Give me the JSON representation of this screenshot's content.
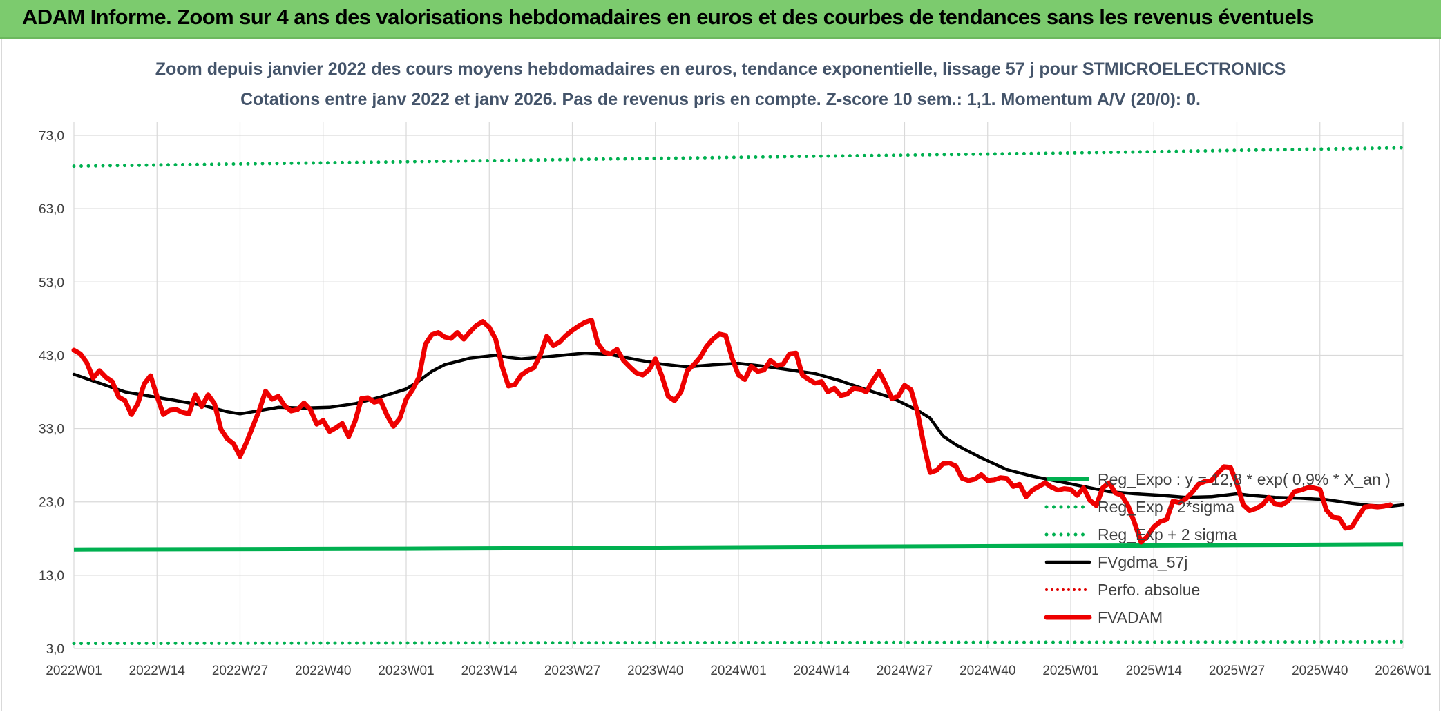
{
  "banner": {
    "title": "ADAM Informe. Zoom sur 4 ans des valorisations hebdomadaires en euros et des courbes de tendances sans les revenus éventuels"
  },
  "chart_data": {
    "type": "line",
    "title": "Zoom depuis janvier 2022 des cours moyens hebdomadaires en euros, tendance exponentielle, lissage 57 j pour STMICROELECTRONICS",
    "subtitle": "Cotations entre janv 2022 et janv 2026. Pas de revenus pris en compte. Z-score 10 sem.: 1,1. Momentum A/V (20/0): 0.",
    "xlabel": "",
    "ylabel": "",
    "ylim": [
      3,
      73
    ],
    "y_ticks": [
      "73,0",
      "63,0",
      "53,0",
      "43,0",
      "33,0",
      "23,0",
      "13,0",
      "3,0"
    ],
    "y_tick_values": [
      73,
      63,
      53,
      43,
      33,
      23,
      13,
      3
    ],
    "x_ticks": [
      "2022W01",
      "2022W14",
      "2022W27",
      "2022W40",
      "2023W01",
      "2023W14",
      "2023W27",
      "2023W40",
      "2024W01",
      "2024W14",
      "2024W27",
      "2024W40",
      "2025W01",
      "2025W14",
      "2025W27",
      "2025W40",
      "2026W01"
    ],
    "x_tick_weeks": [
      0,
      13,
      26,
      39,
      52,
      65,
      78,
      91,
      104,
      117,
      130,
      143,
      156,
      169,
      182,
      195,
      208
    ],
    "grid": true,
    "legend_position": "bottom-right",
    "colors": {
      "reg_expo": "#00b050",
      "reg_band": "#00b050",
      "fvgdma": "#000000",
      "perfo": "#e00000",
      "fvadam": "#ee0000",
      "grid": "#d9d9d9"
    },
    "series": [
      {
        "name": "Reg_Expo : y = 12,8 * exp( 0,9% * X_an )",
        "style": "solid",
        "points": [
          [
            0,
            16.5
          ],
          [
            52,
            16.6
          ],
          [
            104,
            16.8
          ],
          [
            156,
            17.0
          ],
          [
            208,
            17.2
          ]
        ]
      },
      {
        "name": "Reg_Exp - 2*sigma",
        "style": "dotted",
        "points": [
          [
            0,
            3.7
          ],
          [
            52,
            3.75
          ],
          [
            104,
            3.8
          ],
          [
            156,
            3.85
          ],
          [
            208,
            3.9
          ]
        ]
      },
      {
        "name": "Reg_Exp + 2 sigma",
        "style": "dotted",
        "points": [
          [
            0,
            68.8
          ],
          [
            52,
            69.4
          ],
          [
            104,
            70.0
          ],
          [
            156,
            70.6
          ],
          [
            208,
            71.3
          ]
        ]
      },
      {
        "name": "FVgdma_57j",
        "style": "solid",
        "points": [
          [
            0,
            40.4
          ],
          [
            4,
            39.2
          ],
          [
            8,
            38.0
          ],
          [
            12,
            37.4
          ],
          [
            16,
            36.8
          ],
          [
            20,
            36.2
          ],
          [
            24,
            35.3
          ],
          [
            26,
            35.0
          ],
          [
            28,
            35.3
          ],
          [
            32,
            35.9
          ],
          [
            36,
            35.8
          ],
          [
            40,
            35.9
          ],
          [
            44,
            36.4
          ],
          [
            48,
            37.3
          ],
          [
            52,
            38.4
          ],
          [
            54,
            39.5
          ],
          [
            56,
            40.8
          ],
          [
            58,
            41.7
          ],
          [
            62,
            42.6
          ],
          [
            66,
            43.0
          ],
          [
            68,
            42.7
          ],
          [
            70,
            42.5
          ],
          [
            74,
            42.8
          ],
          [
            80,
            43.3
          ],
          [
            84,
            43.1
          ],
          [
            88,
            42.4
          ],
          [
            92,
            41.8
          ],
          [
            96,
            41.4
          ],
          [
            100,
            41.7
          ],
          [
            104,
            41.9
          ],
          [
            108,
            41.5
          ],
          [
            112,
            41.0
          ],
          [
            116,
            40.5
          ],
          [
            120,
            39.5
          ],
          [
            124,
            38.3
          ],
          [
            128,
            37.2
          ],
          [
            132,
            35.5
          ],
          [
            134,
            34.4
          ],
          [
            136,
            32.0
          ],
          [
            138,
            30.8
          ],
          [
            142,
            29.0
          ],
          [
            146,
            27.4
          ],
          [
            150,
            26.5
          ],
          [
            154,
            25.8
          ],
          [
            158,
            25.1
          ],
          [
            162,
            24.4
          ],
          [
            166,
            24.1
          ],
          [
            170,
            23.9
          ],
          [
            174,
            23.6
          ],
          [
            178,
            23.7
          ],
          [
            182,
            24.1
          ],
          [
            184,
            23.9
          ],
          [
            188,
            23.6
          ],
          [
            192,
            23.5
          ],
          [
            196,
            23.3
          ],
          [
            200,
            22.8
          ],
          [
            203,
            22.5
          ],
          [
            206,
            22.4
          ],
          [
            208,
            22.6
          ]
        ]
      },
      {
        "name": "Perfo. absolue",
        "style": "dotted",
        "points": []
      },
      {
        "name": "FVADAM",
        "style": "solid-thick",
        "points": [
          [
            0,
            43.7
          ],
          [
            1,
            43.2
          ],
          [
            2,
            42.0
          ],
          [
            3,
            39.9
          ],
          [
            4,
            40.9
          ],
          [
            5,
            40.0
          ],
          [
            6,
            39.4
          ],
          [
            7,
            37.3
          ],
          [
            8,
            36.8
          ],
          [
            9,
            34.9
          ],
          [
            10,
            36.4
          ],
          [
            11,
            39.1
          ],
          [
            12,
            40.2
          ],
          [
            13,
            37.4
          ],
          [
            14,
            34.9
          ],
          [
            15,
            35.5
          ],
          [
            16,
            35.6
          ],
          [
            17,
            35.2
          ],
          [
            18,
            35.0
          ],
          [
            19,
            37.6
          ],
          [
            20,
            36.0
          ],
          [
            21,
            37.6
          ],
          [
            22,
            36.4
          ],
          [
            23,
            32.9
          ],
          [
            24,
            31.6
          ],
          [
            25,
            30.9
          ],
          [
            26,
            29.2
          ],
          [
            27,
            31.1
          ],
          [
            28,
            33.3
          ],
          [
            29,
            35.5
          ],
          [
            30,
            38.1
          ],
          [
            31,
            37.0
          ],
          [
            32,
            37.4
          ],
          [
            33,
            36.1
          ],
          [
            34,
            35.4
          ],
          [
            35,
            35.6
          ],
          [
            36,
            36.5
          ],
          [
            37,
            35.6
          ],
          [
            38,
            33.6
          ],
          [
            39,
            34.1
          ],
          [
            40,
            32.6
          ],
          [
            41,
            33.1
          ],
          [
            42,
            33.7
          ],
          [
            43,
            31.9
          ],
          [
            44,
            34.0
          ],
          [
            45,
            37.1
          ],
          [
            46,
            37.2
          ],
          [
            47,
            36.6
          ],
          [
            48,
            36.8
          ],
          [
            49,
            34.8
          ],
          [
            50,
            33.3
          ],
          [
            51,
            34.4
          ],
          [
            52,
            37.0
          ],
          [
            53,
            38.3
          ],
          [
            54,
            40.0
          ],
          [
            55,
            44.5
          ],
          [
            56,
            45.8
          ],
          [
            57,
            46.1
          ],
          [
            58,
            45.5
          ],
          [
            59,
            45.3
          ],
          [
            60,
            46.1
          ],
          [
            61,
            45.2
          ],
          [
            62,
            46.2
          ],
          [
            63,
            47.1
          ],
          [
            64,
            47.6
          ],
          [
            65,
            46.8
          ],
          [
            66,
            45.2
          ],
          [
            67,
            41.5
          ],
          [
            68,
            38.8
          ],
          [
            69,
            39.0
          ],
          [
            70,
            40.3
          ],
          [
            71,
            40.9
          ],
          [
            72,
            41.3
          ],
          [
            73,
            43.1
          ],
          [
            74,
            45.6
          ],
          [
            75,
            44.3
          ],
          [
            76,
            44.8
          ],
          [
            77,
            45.7
          ],
          [
            78,
            46.4
          ],
          [
            79,
            47.0
          ],
          [
            80,
            47.5
          ],
          [
            81,
            47.8
          ],
          [
            82,
            44.6
          ],
          [
            83,
            43.4
          ],
          [
            84,
            43.2
          ],
          [
            85,
            43.8
          ],
          [
            86,
            42.3
          ],
          [
            87,
            41.4
          ],
          [
            88,
            40.6
          ],
          [
            89,
            40.3
          ],
          [
            90,
            41.0
          ],
          [
            91,
            42.5
          ],
          [
            92,
            40.2
          ],
          [
            93,
            37.4
          ],
          [
            94,
            36.8
          ],
          [
            95,
            38.0
          ],
          [
            96,
            40.9
          ],
          [
            97,
            41.7
          ],
          [
            98,
            42.7
          ],
          [
            99,
            44.2
          ],
          [
            100,
            45.2
          ],
          [
            101,
            45.9
          ],
          [
            102,
            45.7
          ],
          [
            103,
            42.6
          ],
          [
            104,
            40.3
          ],
          [
            105,
            39.7
          ],
          [
            106,
            41.5
          ],
          [
            107,
            40.8
          ],
          [
            108,
            41.0
          ],
          [
            109,
            42.3
          ],
          [
            110,
            41.6
          ],
          [
            111,
            41.8
          ],
          [
            112,
            43.2
          ],
          [
            113,
            43.3
          ],
          [
            114,
            40.3
          ],
          [
            115,
            39.7
          ],
          [
            116,
            39.2
          ],
          [
            117,
            39.4
          ],
          [
            118,
            38.0
          ],
          [
            119,
            38.5
          ],
          [
            120,
            37.5
          ],
          [
            121,
            37.7
          ],
          [
            122,
            38.5
          ],
          [
            123,
            38.4
          ],
          [
            124,
            38.0
          ],
          [
            125,
            39.5
          ],
          [
            126,
            40.8
          ],
          [
            127,
            39.1
          ],
          [
            128,
            37.1
          ],
          [
            129,
            37.4
          ],
          [
            130,
            38.9
          ],
          [
            131,
            38.3
          ],
          [
            132,
            35.3
          ],
          [
            133,
            30.8
          ],
          [
            134,
            27.0
          ],
          [
            135,
            27.3
          ],
          [
            136,
            28.2
          ],
          [
            137,
            28.3
          ],
          [
            138,
            27.9
          ],
          [
            139,
            26.2
          ],
          [
            140,
            25.9
          ],
          [
            141,
            26.1
          ],
          [
            142,
            26.7
          ],
          [
            143,
            25.9
          ],
          [
            144,
            26.0
          ],
          [
            145,
            26.3
          ],
          [
            146,
            26.2
          ],
          [
            147,
            25.1
          ],
          [
            148,
            25.4
          ],
          [
            149,
            23.7
          ],
          [
            150,
            24.6
          ],
          [
            151,
            25.1
          ],
          [
            152,
            25.6
          ],
          [
            153,
            25.0
          ],
          [
            154,
            24.6
          ],
          [
            155,
            24.8
          ],
          [
            156,
            24.7
          ],
          [
            157,
            23.9
          ],
          [
            158,
            24.9
          ],
          [
            159,
            23.2
          ],
          [
            160,
            22.5
          ],
          [
            161,
            24.9
          ],
          [
            162,
            25.6
          ],
          [
            163,
            24.2
          ],
          [
            164,
            23.9
          ],
          [
            165,
            22.4
          ],
          [
            166,
            20.1
          ],
          [
            167,
            17.5
          ],
          [
            168,
            18.3
          ],
          [
            169,
            19.6
          ],
          [
            170,
            20.3
          ],
          [
            171,
            20.6
          ],
          [
            172,
            23.1
          ],
          [
            173,
            22.9
          ],
          [
            174,
            23.4
          ],
          [
            175,
            24.3
          ],
          [
            176,
            25.4
          ],
          [
            177,
            25.8
          ],
          [
            178,
            25.9
          ],
          [
            179,
            26.9
          ],
          [
            180,
            27.8
          ],
          [
            181,
            27.7
          ],
          [
            182,
            25.5
          ],
          [
            183,
            22.6
          ],
          [
            184,
            21.8
          ],
          [
            185,
            22.1
          ],
          [
            186,
            22.6
          ],
          [
            187,
            23.6
          ],
          [
            188,
            22.7
          ],
          [
            189,
            22.6
          ],
          [
            190,
            23.1
          ],
          [
            191,
            24.4
          ],
          [
            192,
            24.6
          ],
          [
            193,
            24.9
          ],
          [
            194,
            24.9
          ],
          [
            195,
            24.7
          ],
          [
            196,
            21.9
          ],
          [
            197,
            20.9
          ],
          [
            198,
            20.8
          ],
          [
            199,
            19.4
          ],
          [
            200,
            19.6
          ],
          [
            201,
            21.0
          ],
          [
            202,
            22.3
          ],
          [
            203,
            22.4
          ],
          [
            204,
            22.3
          ],
          [
            205,
            22.4
          ],
          [
            206,
            22.6
          ]
        ]
      }
    ]
  }
}
